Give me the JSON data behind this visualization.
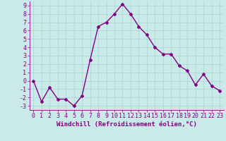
{
  "x": [
    0,
    1,
    2,
    3,
    4,
    5,
    6,
    7,
    8,
    9,
    10,
    11,
    12,
    13,
    14,
    15,
    16,
    17,
    18,
    19,
    20,
    21,
    22,
    23
  ],
  "y": [
    0,
    -2.5,
    -0.8,
    -2.2,
    -2.2,
    -3.0,
    -1.8,
    2.5,
    6.5,
    7.0,
    8.0,
    9.2,
    8.0,
    6.5,
    5.5,
    4.0,
    3.2,
    3.2,
    1.8,
    1.2,
    -0.5,
    0.8,
    -0.6,
    -1.2
  ],
  "line_color": "#800080",
  "marker": "D",
  "marker_size": 2,
  "bg_color": "#caeaea",
  "grid_color": "#aad4d4",
  "xlabel": "Windchill (Refroidissement éolien,°C)",
  "xlim": [
    -0.5,
    23.5
  ],
  "ylim": [
    -3.5,
    9.5
  ],
  "yticks": [
    -3,
    -2,
    -1,
    0,
    1,
    2,
    3,
    4,
    5,
    6,
    7,
    8,
    9
  ],
  "xticks": [
    0,
    1,
    2,
    3,
    4,
    5,
    6,
    7,
    8,
    9,
    10,
    11,
    12,
    13,
    14,
    15,
    16,
    17,
    18,
    19,
    20,
    21,
    22,
    23
  ],
  "xlabel_fontsize": 6.5,
  "tick_fontsize": 6,
  "linewidth": 1.0
}
